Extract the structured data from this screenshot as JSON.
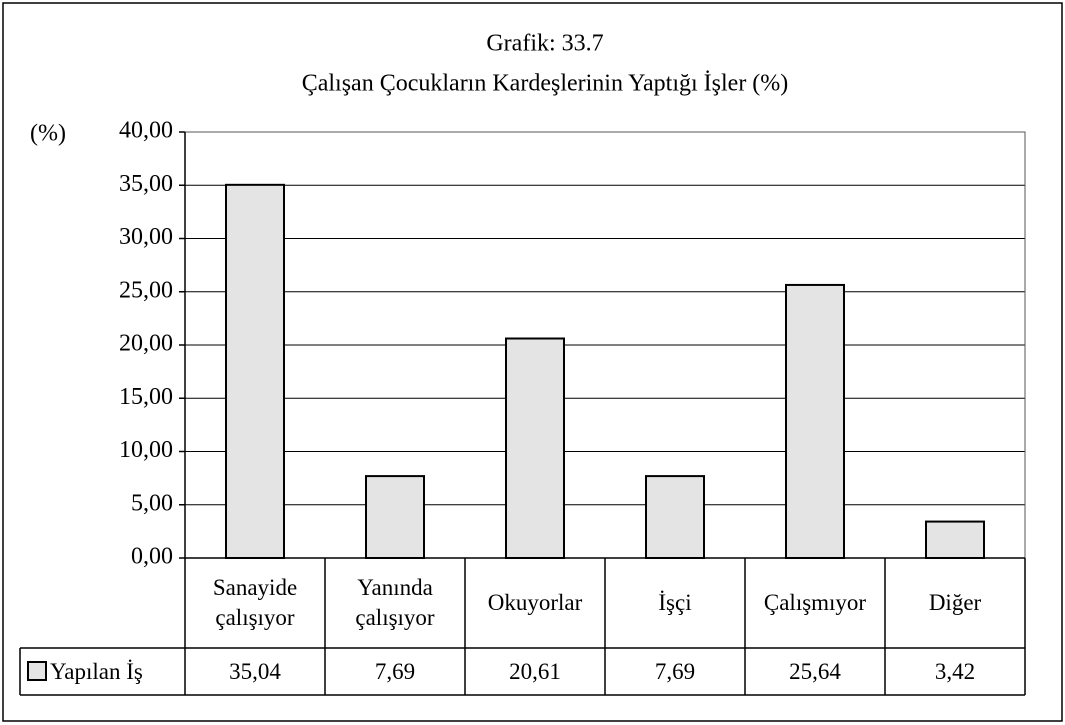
{
  "chart_data": {
    "type": "bar",
    "title": "Grafik: 33.7",
    "subtitle": "Çalışan Çocukların Kardeşlerinin Yaptığı İşler (%)",
    "y_label": "(%)",
    "categories": [
      "Sanayide çalışıyor",
      "Yanında çalışıyor",
      "Okuyorlar",
      "İşçi",
      "Çalışmıyor",
      "Diğer"
    ],
    "series": [
      {
        "name": "Yapılan İş",
        "color": "#e4e4e4",
        "values": [
          35.04,
          7.69,
          20.61,
          7.69,
          25.64,
          3.42
        ],
        "value_labels": [
          "35,04",
          "7,69",
          "20,61",
          "7,69",
          "25,64",
          "3,42"
        ]
      }
    ],
    "ylim": [
      0,
      40
    ],
    "yticks": [
      {
        "value": 0,
        "label": "0,00"
      },
      {
        "value": 5,
        "label": "5,00"
      },
      {
        "value": 10,
        "label": "10,00"
      },
      {
        "value": 15,
        "label": "15,00"
      },
      {
        "value": 20,
        "label": "20,00"
      },
      {
        "value": 25,
        "label": "25,00"
      },
      {
        "value": 30,
        "label": "30,00"
      },
      {
        "value": 35,
        "label": "35,00"
      },
      {
        "value": 40,
        "label": "40,00"
      }
    ],
    "grid": true
  }
}
